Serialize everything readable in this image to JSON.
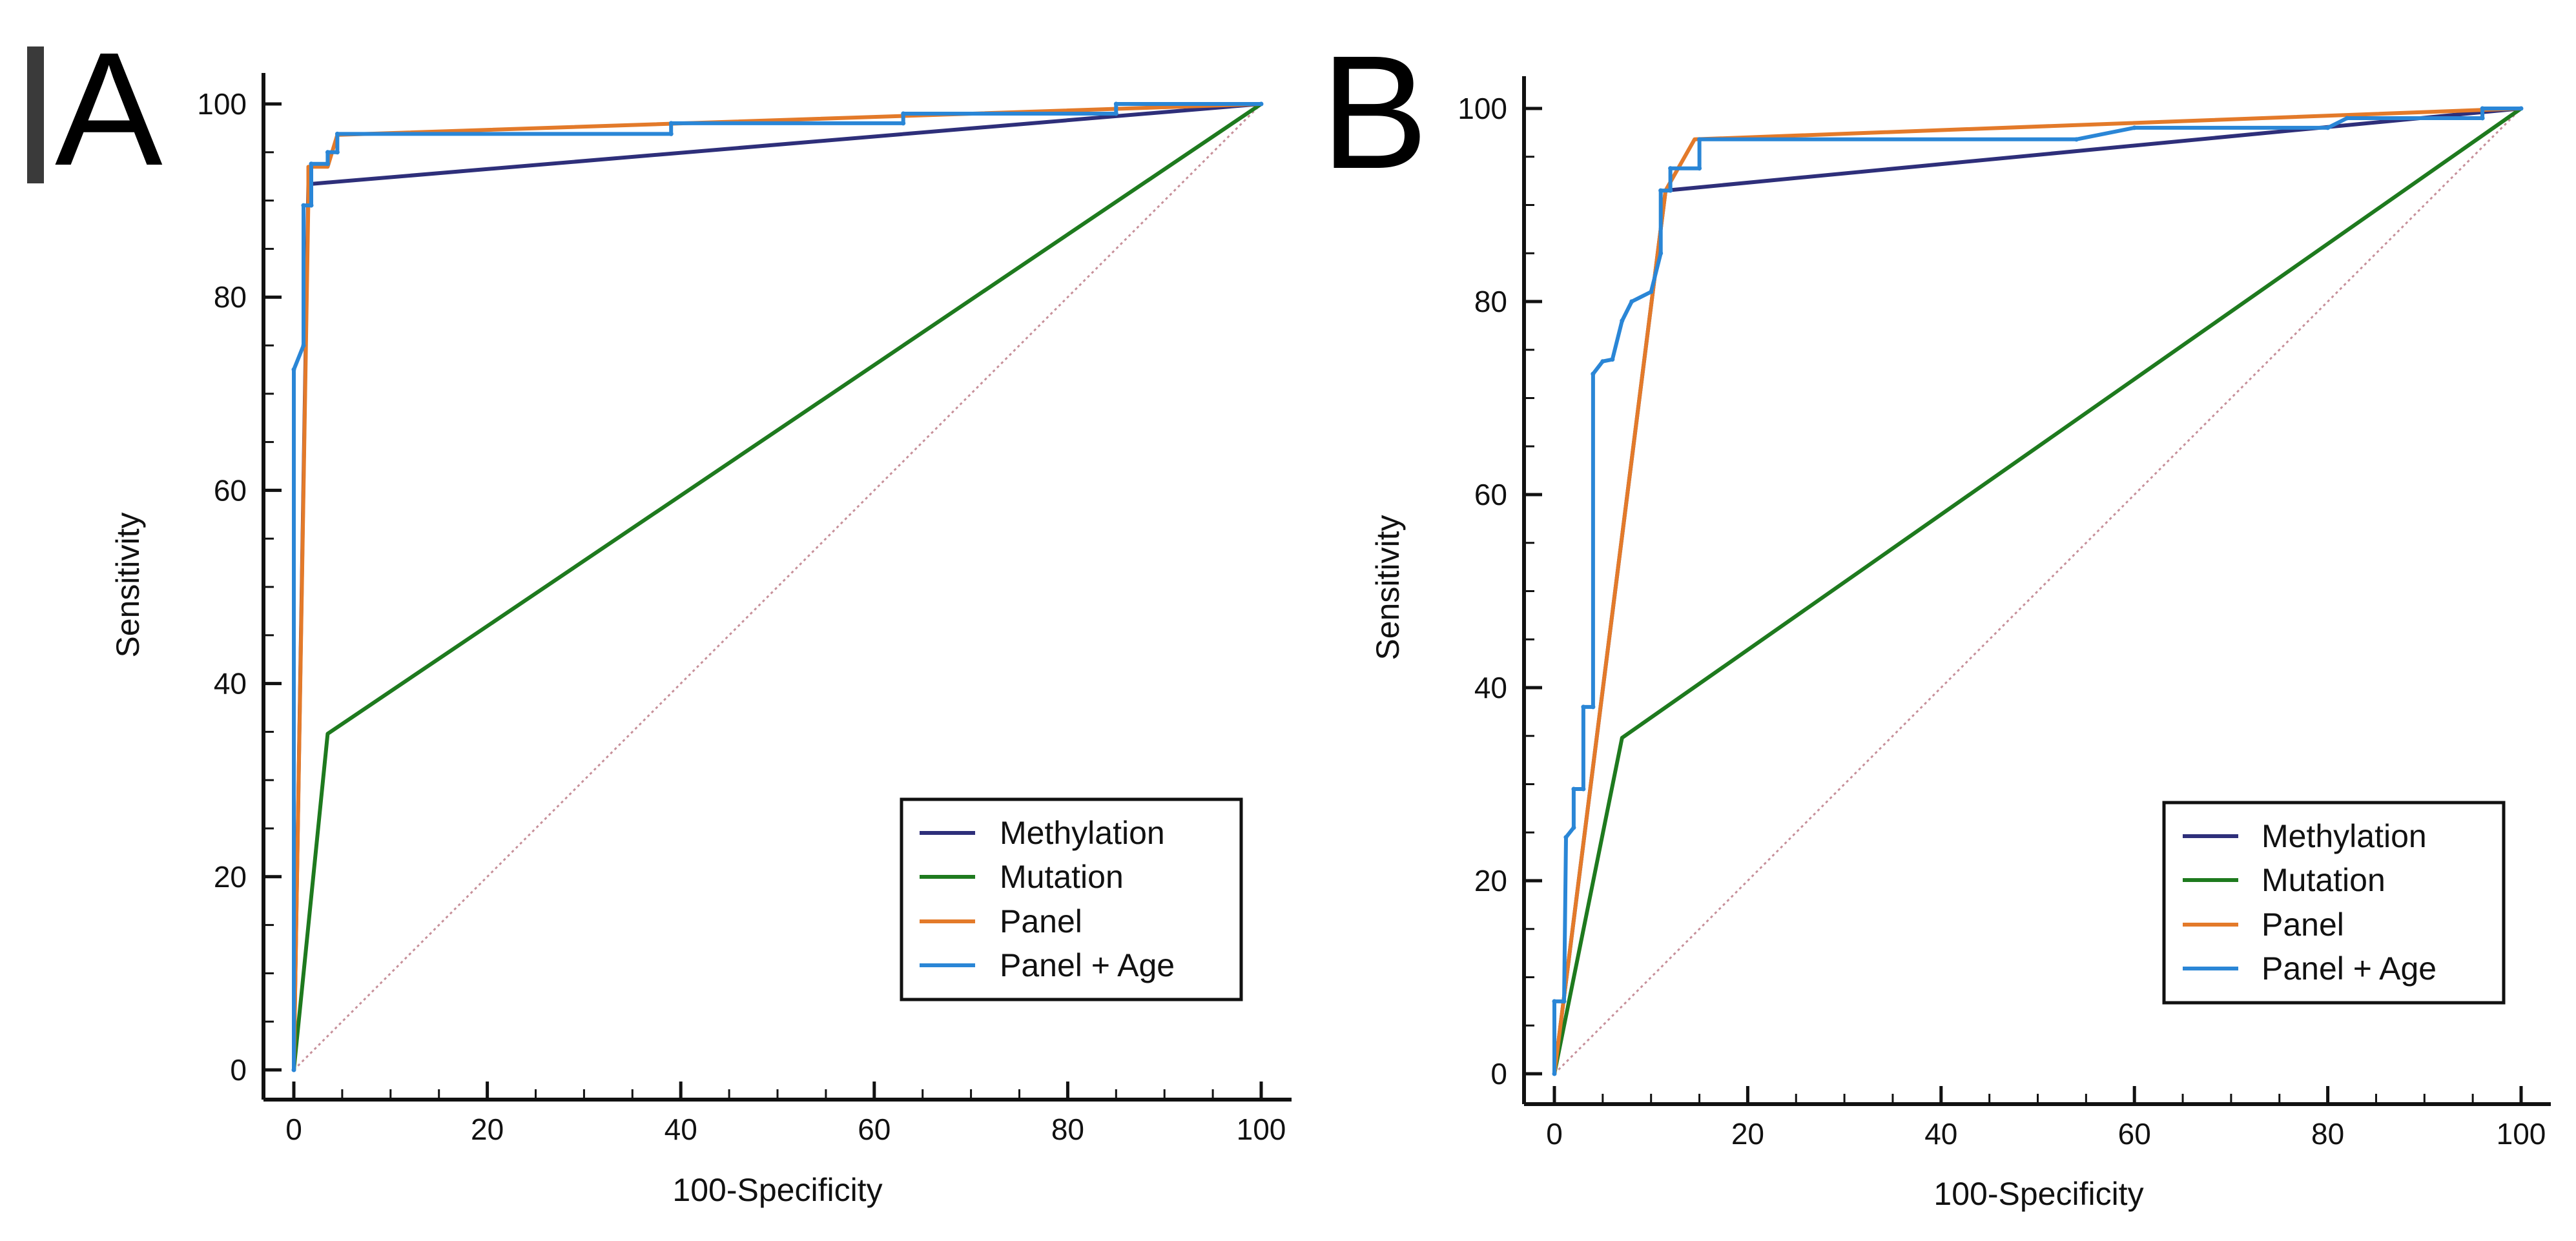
{
  "figure": {
    "colors": {
      "Methylation": "#2e2f7a",
      "Mutation": "#1e7a1e",
      "Panel": "#e37a2a",
      "Panel + Age": "#2a86d6"
    }
  },
  "chart_data": [
    {
      "panel_label": "A",
      "type": "line",
      "title": "",
      "xlabel": "100-Specificity",
      "ylabel": "Sensitivity",
      "xlim": [
        0,
        100
      ],
      "ylim": [
        0,
        100
      ],
      "xticks": [
        "0",
        "20",
        "40",
        "60",
        "80",
        "100"
      ],
      "yticks": [
        "0",
        "20",
        "40",
        "60",
        "80",
        "100"
      ],
      "legend": [
        "Methylation",
        "Mutation",
        "Panel",
        "Panel + Age"
      ],
      "legend_position": "bottom-right",
      "reference_line": [
        [
          0,
          0
        ],
        [
          100,
          100
        ]
      ],
      "series": [
        {
          "name": "Methylation",
          "points": [
            [
              0,
              0
            ],
            [
              1.5,
              91.7
            ],
            [
              100,
              100
            ]
          ]
        },
        {
          "name": "Mutation",
          "points": [
            [
              0,
              0
            ],
            [
              3.5,
              34.8
            ],
            [
              100,
              100
            ]
          ]
        },
        {
          "name": "Panel",
          "points": [
            [
              0,
              0
            ],
            [
              1.5,
              90
            ],
            [
              1.5,
              93.5
            ],
            [
              3.5,
              93.5
            ],
            [
              4.5,
              96.8
            ],
            [
              100,
              100
            ]
          ]
        },
        {
          "name": "Panel + Age",
          "points": [
            [
              0,
              0
            ],
            [
              0,
              72.5
            ],
            [
              1,
              75
            ],
            [
              1,
              89.5
            ],
            [
              1.8,
              89.5
            ],
            [
              1.8,
              93.8
            ],
            [
              3.5,
              93.8
            ],
            [
              3.5,
              95
            ],
            [
              4.5,
              95
            ],
            [
              4.5,
              96.9
            ],
            [
              39,
              96.9
            ],
            [
              39,
              98
            ],
            [
              63,
              98
            ],
            [
              63,
              99
            ],
            [
              85,
              99
            ],
            [
              85,
              100
            ],
            [
              100,
              100
            ]
          ]
        }
      ]
    },
    {
      "panel_label": "B",
      "type": "line",
      "title": "",
      "xlabel": "100-Specificity",
      "ylabel": "Sensitivity",
      "xlim": [
        0,
        100
      ],
      "ylim": [
        0,
        100
      ],
      "xticks": [
        "0",
        "20",
        "40",
        "60",
        "80",
        "100"
      ],
      "yticks": [
        "0",
        "20",
        "40",
        "60",
        "80",
        "100"
      ],
      "legend": [
        "Methylation",
        "Mutation",
        "Panel",
        "Panel + Age"
      ],
      "legend_position": "bottom-right",
      "reference_line": [
        [
          0,
          0
        ],
        [
          100,
          100
        ]
      ],
      "series": [
        {
          "name": "Methylation",
          "points": [
            [
              0,
              0
            ],
            [
              11.5,
              91.5
            ],
            [
              100,
              100
            ]
          ]
        },
        {
          "name": "Mutation",
          "points": [
            [
              0,
              0
            ],
            [
              7,
              34.8
            ],
            [
              100,
              100
            ]
          ]
        },
        {
          "name": "Panel",
          "points": [
            [
              0,
              0
            ],
            [
              11.5,
              91.5
            ],
            [
              14.5,
              96.8
            ],
            [
              100,
              100
            ]
          ]
        },
        {
          "name": "Panel + Age",
          "points": [
            [
              0,
              0
            ],
            [
              0,
              7.5
            ],
            [
              1,
              7.5
            ],
            [
              1.2,
              24.5
            ],
            [
              2,
              25.5
            ],
            [
              2,
              29.5
            ],
            [
              3,
              29.5
            ],
            [
              3,
              38
            ],
            [
              4,
              38
            ],
            [
              4,
              72.5
            ],
            [
              5,
              73.8
            ],
            [
              6,
              74
            ],
            [
              7,
              78
            ],
            [
              8,
              80
            ],
            [
              10,
              81
            ],
            [
              11,
              85
            ],
            [
              11,
              91.5
            ],
            [
              12,
              91.5
            ],
            [
              12,
              93.8
            ],
            [
              15,
              93.8
            ],
            [
              15,
              96.8
            ],
            [
              54,
              96.8
            ],
            [
              60,
              98
            ],
            [
              80,
              98
            ],
            [
              82,
              99
            ],
            [
              96,
              99
            ],
            [
              96,
              100
            ],
            [
              100,
              100
            ]
          ]
        }
      ]
    }
  ]
}
